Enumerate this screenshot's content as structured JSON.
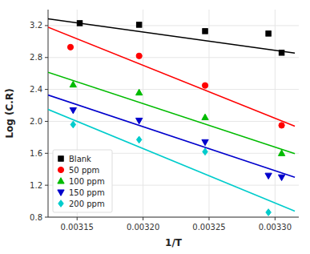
{
  "chart_data": {
    "type": "scatter",
    "xlabel": "1/T",
    "ylabel": "Log (C.R)",
    "xlim": [
      0.003128,
      0.003318
    ],
    "ylim": [
      0.8,
      3.4
    ],
    "xticks": [
      0.00315,
      {
        "value": 0.0032,
        "label": "0.00320"
      },
      0.00325,
      {
        "value": 0.0033,
        "label": "0.00330"
      }
    ],
    "yticks": [
      0.8,
      1.2,
      1.6,
      {
        "value": 2.0,
        "label": "2.0"
      },
      2.4,
      2.8,
      3.2
    ],
    "legend": "lower left",
    "series": [
      {
        "name": "Blank",
        "color": "#000000",
        "marker": "square",
        "x": [
          0.003152,
          0.003197,
          0.003247,
          0.003295,
          0.003305
        ],
        "values": [
          3.23,
          3.21,
          3.13,
          3.1,
          2.86
        ],
        "fit": {
          "x": [
            0.003128,
            0.003315
          ],
          "values": [
            3.285,
            2.855
          ]
        }
      },
      {
        "name": "50 ppm",
        "color": "#ff0000",
        "marker": "circle",
        "x": [
          0.003145,
          0.003197,
          0.003247,
          0.003305
        ],
        "values": [
          2.93,
          2.82,
          2.45,
          1.95
        ],
        "fit": {
          "x": [
            0.003128,
            0.003315
          ],
          "values": [
            3.18,
            1.94
          ]
        }
      },
      {
        "name": "100 ppm",
        "color": "#00bb00",
        "marker": "triangle-up",
        "x": [
          0.003147,
          0.003197,
          0.003247,
          0.003305
        ],
        "values": [
          2.46,
          2.36,
          2.05,
          1.6
        ],
        "fit": {
          "x": [
            0.003128,
            0.003315
          ],
          "values": [
            2.615,
            1.595
          ]
        }
      },
      {
        "name": "150 ppm",
        "color": "#0000cc",
        "marker": "triangle-down",
        "x": [
          0.003147,
          0.003197,
          0.003247,
          0.003295,
          0.003305
        ],
        "values": [
          2.14,
          2.01,
          1.74,
          1.32,
          1.3
        ],
        "fit": {
          "x": [
            0.003128,
            0.003315
          ],
          "values": [
            2.33,
            1.3
          ]
        }
      },
      {
        "name": "200 ppm",
        "color": "#00cccc",
        "marker": "diamond",
        "x": [
          0.003147,
          0.003197,
          0.003247,
          0.003295
        ],
        "values": [
          1.96,
          1.77,
          1.62,
          0.86
        ],
        "fit": {
          "x": [
            0.003128,
            0.003315
          ],
          "values": [
            2.15,
            0.875
          ]
        }
      }
    ]
  }
}
